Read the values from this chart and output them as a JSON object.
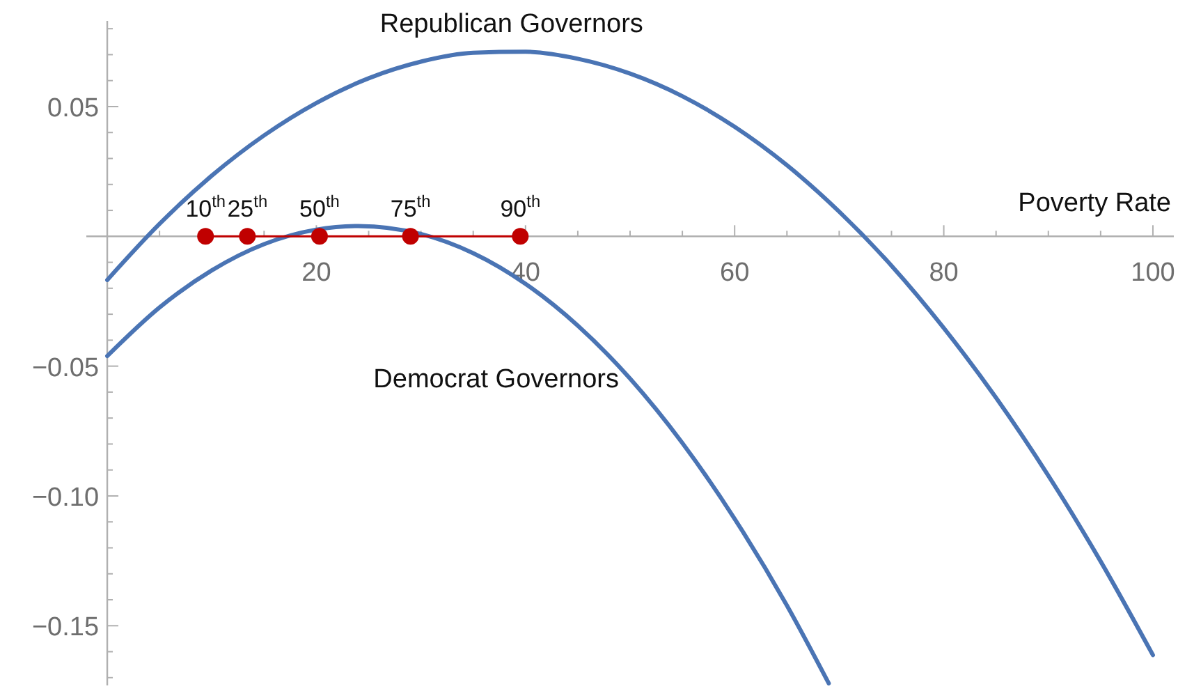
{
  "chart_data": {
    "type": "line",
    "xlabel": "Poverty Rate",
    "xlim": [
      -2,
      102
    ],
    "ylim": [
      -0.173,
      0.083
    ],
    "xticks": [
      {
        "value": 5,
        "label": null
      },
      {
        "value": 10,
        "label": null
      },
      {
        "value": 15,
        "label": null
      },
      20,
      {
        "value": 25,
        "label": null
      },
      {
        "value": 30,
        "label": null
      },
      {
        "value": 35,
        "label": null
      },
      40,
      {
        "value": 45,
        "label": null
      },
      {
        "value": 50,
        "label": null
      },
      {
        "value": 55,
        "label": null
      },
      60,
      {
        "value": 65,
        "label": null
      },
      {
        "value": 70,
        "label": null
      },
      {
        "value": 75,
        "label": null
      },
      80,
      {
        "value": 85,
        "label": null
      },
      {
        "value": 90,
        "label": null
      },
      {
        "value": 95,
        "label": null
      },
      100
    ],
    "yticks": [
      {
        "value": -0.17,
        "label": null
      },
      {
        "value": -0.16,
        "label": null
      },
      {
        "value": -0.15,
        "label": "−0.15"
      },
      {
        "value": -0.14,
        "label": null
      },
      {
        "value": -0.13,
        "label": null
      },
      {
        "value": -0.12,
        "label": null
      },
      {
        "value": -0.11,
        "label": null
      },
      {
        "value": -0.1,
        "label": "−0.10"
      },
      {
        "value": -0.09,
        "label": null
      },
      {
        "value": -0.08,
        "label": null
      },
      {
        "value": -0.07,
        "label": null
      },
      {
        "value": -0.06,
        "label": null
      },
      {
        "value": -0.05,
        "label": "−0.05"
      },
      {
        "value": -0.04,
        "label": null
      },
      {
        "value": -0.03,
        "label": null
      },
      {
        "value": -0.02,
        "label": null
      },
      {
        "value": -0.01,
        "label": null
      },
      {
        "value": 0.01,
        "label": null
      },
      {
        "value": 0.02,
        "label": null
      },
      {
        "value": 0.03,
        "label": null
      },
      {
        "value": 0.04,
        "label": null
      },
      {
        "value": 0.05,
        "label": "0.05"
      },
      {
        "value": 0.06,
        "label": null
      },
      {
        "value": 0.07,
        "label": null
      },
      {
        "value": 0.08,
        "label": null
      }
    ],
    "grid": false,
    "annotations": [
      {
        "text": "10$^{th}$",
        "x": 9.4,
        "y": 0
      },
      {
        "text": "25$^{th}$",
        "x": 13.4,
        "y": 0
      },
      {
        "text": "50$^{th}$",
        "x": 20.3,
        "y": 0
      },
      {
        "text": "75$^{th}$",
        "x": 29.0,
        "y": 0
      },
      {
        "text": "90$^{th}$",
        "x": 39.5,
        "y": 0
      }
    ],
    "series": [
      {
        "name": "Republican Governors",
        "color": "#4a74b4",
        "marker": "none",
        "x": [
          0,
          5,
          10,
          15,
          20,
          25,
          30,
          35,
          40,
          45,
          50,
          55,
          60,
          65,
          70,
          75,
          80,
          85,
          90,
          95,
          100
        ],
        "values": [
          -0.0168,
          0.0048,
          0.0234,
          0.0389,
          0.0514,
          0.0609,
          0.0673,
          0.0707,
          0.0711,
          0.0684,
          0.0627,
          0.054,
          0.0422,
          0.0274,
          0.0095,
          -0.0113,
          -0.0353,
          -0.0622,
          -0.0922,
          -0.1252,
          -0.1613
        ]
      },
      {
        "name": "Democrat Governors",
        "color": "#4a74b4",
        "marker": "none",
        "x": [
          0,
          5,
          10,
          15,
          20,
          24,
          30,
          35,
          40,
          45,
          50,
          55,
          60,
          65,
          69
        ],
        "values": [
          -0.0461,
          -0.0274,
          -0.0131,
          -0.003,
          0.0026,
          0.004,
          0.0009,
          -0.0065,
          -0.0183,
          -0.0344,
          -0.0548,
          -0.0796,
          -0.1088,
          -0.1422,
          -0.1722
        ]
      },
      {
        "color": "#c00000",
        "marker": "circle",
        "x": [
          9.4,
          13.4,
          20.3,
          29.0,
          39.5
        ],
        "values": [
          0,
          0,
          0,
          0,
          0
        ]
      }
    ]
  }
}
